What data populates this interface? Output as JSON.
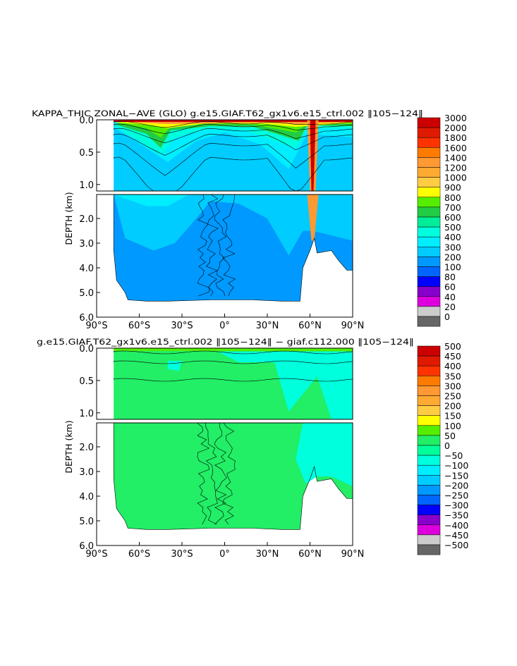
{
  "chart_data": [
    {
      "type": "heatmap",
      "title": "KAPPA_THIC ZONAL−AVE (GLO) g.e15.GIAF.T62_gx1v6.e15_ctrl.002 ‖105−124‖",
      "xlabel": "",
      "ylabel": "DEPTH (km)",
      "xlim": [
        -90,
        90
      ],
      "ylim": [
        6.0,
        0.0
      ],
      "x_ticks": [
        "90°S",
        "60°S",
        "30°S",
        "0°",
        "30°N",
        "60°N",
        "90°N"
      ],
      "y_ticks_upper": [
        "0.0",
        "0.5",
        "1.0"
      ],
      "y_ticks_lower": [
        "2.0",
        "3.0",
        "4.0",
        "5.0",
        "6.0"
      ],
      "colorbar": {
        "labels": [
          "3000",
          "2000",
          "1800",
          "1600",
          "1400",
          "1200",
          "1000",
          "900",
          "800",
          "700",
          "600",
          "500",
          "400",
          "300",
          "200",
          "100",
          "80",
          "60",
          "40",
          "20",
          "0"
        ],
        "colors": [
          "#cc0000",
          "#e01a00",
          "#ff3300",
          "#ff7a00",
          "#ff9933",
          "#ffaa33",
          "#ffcc44",
          "#ffff00",
          "#55ee00",
          "#22cc44",
          "#00ee99",
          "#00ffdd",
          "#00eeff",
          "#00ccff",
          "#0099ff",
          "#0066ff",
          "#0000ff",
          "#8800cc",
          "#dd00dd",
          "#cccccc",
          "#666666"
        ]
      }
    },
    {
      "type": "heatmap",
      "title": "g.e15.GIAF.T62_gx1v6.e15_ctrl.002 ‖105−124‖ − giaf.c112.000 ‖105−124‖",
      "xlabel": "",
      "ylabel": "DEPTH (km)",
      "xlim": [
        -90,
        90
      ],
      "ylim": [
        6.0,
        0.0
      ],
      "x_ticks": [
        "90°S",
        "60°S",
        "30°S",
        "0°",
        "30°N",
        "60°N",
        "90°N"
      ],
      "y_ticks_upper": [
        "0.0",
        "0.5",
        "1.0"
      ],
      "y_ticks_lower": [
        "2.0",
        "3.0",
        "4.0",
        "5.0",
        "6.0"
      ],
      "colorbar": {
        "labels": [
          "500",
          "450",
          "400",
          "350",
          "300",
          "250",
          "200",
          "150",
          "100",
          "50",
          "0",
          "−50",
          "−100",
          "−150",
          "−200",
          "−250",
          "−300",
          "−350",
          "−400",
          "−450",
          "−500"
        ],
        "colors": [
          "#cc0000",
          "#e01a00",
          "#ff3300",
          "#ff7a00",
          "#ff9933",
          "#ffaa33",
          "#ffcc44",
          "#ffff00",
          "#55ee00",
          "#22ee66",
          "#00ff99",
          "#00ffdd",
          "#00eeff",
          "#00ccff",
          "#0099ff",
          "#0066ff",
          "#0000ff",
          "#8800cc",
          "#dd00dd",
          "#cccccc",
          "#666666"
        ]
      }
    }
  ]
}
